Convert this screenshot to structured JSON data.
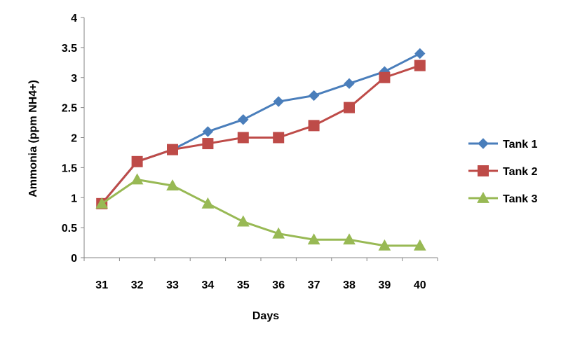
{
  "chart_data": {
    "type": "line",
    "title": "",
    "xlabel": "Days",
    "ylabel": "Ammonia (ppm NH4+)",
    "categories": [
      "31",
      "32",
      "33",
      "34",
      "35",
      "36",
      "37",
      "38",
      "39",
      "40"
    ],
    "ylim": [
      0,
      4
    ],
    "yticks": [
      "0",
      "0.5",
      "1",
      "1.5",
      "2",
      "2.5",
      "3",
      "3.5",
      "4"
    ],
    "grid": false,
    "legend_position": "right",
    "series": [
      {
        "name": "Tank 1",
        "color": "#4a7ebb",
        "marker": "diamond",
        "values": [
          0.9,
          1.6,
          1.8,
          2.1,
          2.3,
          2.6,
          2.7,
          2.9,
          3.1,
          3.4
        ]
      },
      {
        "name": "Tank 2",
        "color": "#be4b48",
        "marker": "square",
        "values": [
          0.9,
          1.6,
          1.8,
          1.9,
          2.0,
          2.0,
          2.2,
          2.5,
          3.0,
          3.2
        ]
      },
      {
        "name": "Tank 3",
        "color": "#98b954",
        "marker": "triangle",
        "values": [
          0.9,
          1.3,
          1.2,
          0.9,
          0.6,
          0.4,
          0.3,
          0.3,
          0.2,
          0.2
        ]
      }
    ]
  }
}
